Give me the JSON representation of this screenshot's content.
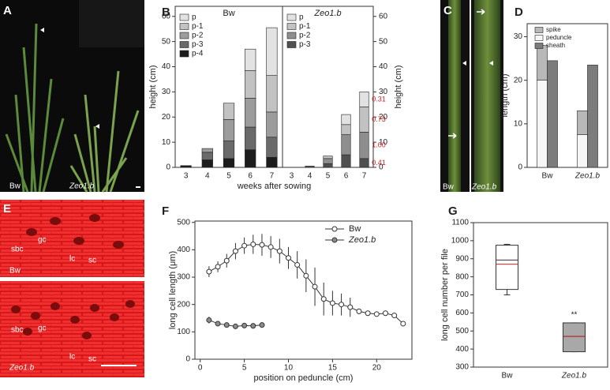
{
  "panel_letters": [
    "A",
    "B",
    "C",
    "D",
    "E",
    "F",
    "G"
  ],
  "photos": {
    "A": {
      "labels": [
        "Bw",
        "Zeo1.b"
      ]
    },
    "C": {
      "labels": [
        "Bw",
        "Zeo1.b"
      ]
    },
    "E": {
      "labels": [
        "sbc",
        "gc",
        "lc",
        "sc",
        "Bw",
        "sbc",
        "gc",
        "lc",
        "sc",
        "Zeo1.b"
      ]
    }
  },
  "chart_data": [
    {
      "type": "stacked_bar",
      "title": "Bw",
      "x_label": "weeks after sowing",
      "y_label": "height (cm)",
      "y_axis_side": "left",
      "categories": [
        "3",
        "4",
        "5",
        "6",
        "7"
      ],
      "series": [
        {
          "name": "p",
          "color": "#e2e2e2",
          "values": [
            0,
            0,
            0,
            8.5,
            19
          ]
        },
        {
          "name": "p-1",
          "color": "#c2c2c2",
          "values": [
            0,
            0,
            6.5,
            11,
            14.5
          ]
        },
        {
          "name": "p-2",
          "color": "#9c9c9c",
          "values": [
            0,
            1.5,
            8.5,
            11.5,
            10
          ]
        },
        {
          "name": "p-3",
          "color": "#6a6a6a",
          "values": [
            0,
            3,
            7,
            9,
            8
          ]
        },
        {
          "name": "p-4",
          "color": "#1c1c1c",
          "values": [
            0.7,
            3,
            3.5,
            7,
            4
          ]
        }
      ],
      "ylim": [
        0,
        64
      ],
      "yticks": [
        0,
        10,
        20,
        30,
        40,
        50,
        60
      ]
    },
    {
      "type": "stacked_bar",
      "title": "Zeo1.b",
      "y_label": "height (cm)",
      "y_axis_side": "right",
      "categories": [
        "3",
        "4",
        "5",
        "6",
        "7"
      ],
      "series": [
        {
          "name": "p",
          "color": "#e2e2e2",
          "values": [
            0,
            0,
            0,
            4,
            6
          ]
        },
        {
          "name": "p-1",
          "color": "#c2c2c2",
          "values": [
            0,
            0,
            1,
            4,
            10
          ]
        },
        {
          "name": "p-2",
          "color": "#8e8e8e",
          "values": [
            0,
            0,
            2,
            8,
            10.5
          ]
        },
        {
          "name": "p-3",
          "color": "#505050",
          "values": [
            0,
            0.5,
            1.5,
            5,
            3.5
          ]
        }
      ],
      "annotations": [
        "0.31",
        "0.73",
        "1.00",
        "0.41"
      ],
      "annotation_color": "#d42020",
      "ylim": [
        0,
        64
      ],
      "yticks": [
        0,
        10,
        20,
        30,
        40,
        50,
        60
      ]
    },
    {
      "type": "paired_bar",
      "y_label": "length (cm)",
      "categories": [
        "Bw",
        "Zeo1.b"
      ],
      "series": [
        {
          "name": "spike",
          "color": "#b8b8b8",
          "values": [
            8,
            5.5
          ],
          "stacked_on": "peduncle"
        },
        {
          "name": "peduncle",
          "color": "#f6f6f6",
          "values": [
            20,
            7.5
          ]
        },
        {
          "name": "sheath",
          "color": "#7c7c7c",
          "values": [
            24.5,
            23.5
          ]
        }
      ],
      "ylim": [
        0,
        33
      ],
      "yticks": [
        0,
        10,
        20,
        30
      ]
    },
    {
      "type": "line",
      "x_label": "position on peduncle (cm)",
      "y_label": "long cell length (μm)",
      "series": [
        {
          "name": "Bw",
          "color": "#333333",
          "marker_fill": "#ffffff",
          "x": [
            1,
            2,
            3,
            4,
            5,
            6,
            7,
            8,
            9,
            10,
            11,
            12,
            13,
            14,
            15,
            16,
            17,
            18,
            19,
            20,
            21,
            22,
            23
          ],
          "values": [
            320,
            338,
            360,
            395,
            415,
            420,
            418,
            410,
            395,
            370,
            345,
            305,
            265,
            220,
            205,
            200,
            190,
            175,
            168,
            165,
            168,
            160,
            130
          ],
          "errors": [
            20,
            20,
            25,
            30,
            30,
            35,
            40,
            40,
            45,
            40,
            50,
            60,
            70,
            60,
            45,
            40,
            35,
            10,
            5,
            5,
            5,
            10,
            5
          ]
        },
        {
          "name": "Zeo1.b",
          "color": "#333333",
          "marker_fill": "#8c8c8c",
          "x": [
            1,
            2,
            3,
            4,
            5,
            6,
            7
          ],
          "values": [
            143,
            130,
            125,
            120,
            123,
            122,
            125
          ],
          "errors": [
            12,
            10,
            8,
            8,
            8,
            10,
            10
          ]
        }
      ],
      "xlim": [
        -0.6,
        24
      ],
      "xticks": [
        0,
        5,
        10,
        15,
        20
      ],
      "ylim": [
        0,
        505
      ],
      "yticks": [
        0,
        100,
        200,
        300,
        400,
        500
      ]
    },
    {
      "type": "box",
      "y_label": "long cell number per file",
      "categories": [
        "Bw",
        "Zeo1.b"
      ],
      "box_colors": [
        "#ffffff",
        "#a8a8a8"
      ],
      "median_color": "#d42020",
      "boxes": [
        {
          "whisker_low": 700,
          "q1": 730,
          "median": 870,
          "mean": 893,
          "q3": 975,
          "whisker_high": 980
        },
        {
          "whisker_low": 385,
          "q1": 385,
          "median": 470,
          "mean": 470,
          "q3": 545,
          "whisker_high": 545
        }
      ],
      "annotations": [
        "**"
      ],
      "ylim": [
        300,
        1100
      ],
      "yticks": [
        300,
        400,
        500,
        600,
        700,
        800,
        900,
        1000,
        1100
      ]
    }
  ]
}
